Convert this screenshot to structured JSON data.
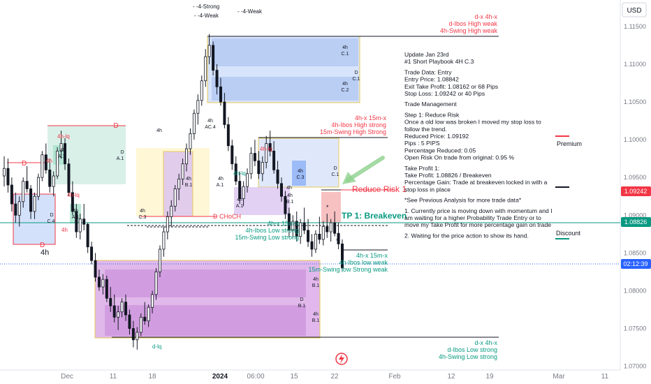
{
  "chart_data": {
    "type": "candlestick",
    "currency": "USD",
    "y_ticks": [
      "1.11500",
      "1.11000",
      "1.10500",
      "1.10000",
      "1.09500",
      "1.09000",
      "1.08500",
      "1.08000",
      "1.07500",
      "1.07000"
    ],
    "x_ticks": [
      "Dec",
      "11",
      "18",
      "2024",
      "06:00",
      "15",
      "22",
      "Feb",
      "12",
      "19",
      "Mar",
      "11"
    ],
    "ylim": [
      1.0695,
      1.1185
    ],
    "price_tags": [
      {
        "value": "1.09242",
        "color": "#f23645"
      },
      {
        "value": "1.08826",
        "color": "#089981"
      },
      {
        "value": "02:12:39",
        "color": "#2962ff"
      }
    ],
    "legend_top": {
      "strong": "4-Strong",
      "weak_a": "4-Weak",
      "weak_b": "4-Weak"
    },
    "top_right_labels": {
      "line1": "d-x      4h-x",
      "line2": "d-Ibos High weak",
      "line3": "4h-Swing High weak"
    },
    "mid_high_labels": {
      "line1": "4h-x      15m-x",
      "line2": "4h-Ibos High strong",
      "line3": "15m-Swing High Strong"
    },
    "mid_low_labels": {
      "line1": "4h-x      15m-x",
      "line2": "4h-Ibos Low strong",
      "line3": "15m-Swing Low strong"
    },
    "right_low_labels": {
      "line1": "4h-x      15m-x",
      "line2": "4h-Ibos low weak",
      "line3": "15m-Swing low Strong weak"
    },
    "bottom_labels": {
      "line1": "d-x      4h-x",
      "line2": "d-Ibos Low strong",
      "line3": "4h-Swing Low strong"
    },
    "zone_labels": {
      "premium": "Premium",
      "discount": "Discount",
      "reduce_risk": "Reduce Risk 1",
      "tp1": "TP 1: Breakeven",
      "choch": "D CHoCH",
      "d": "D",
      "h4": "4h",
      "h4lq": "4h-lq",
      "dlq": "d-lq",
      "c1": "C.1",
      "c2": "C.2",
      "c3": "C.3",
      "c4": "C.4",
      "a1": "A.1",
      "b1": "B.1",
      "ac4": "AC.4",
      "star": "*"
    },
    "notes": [
      "Update Jan 23rd",
      "#1 Short Playbook 4H C.3",
      "",
      "Trade Data: Entry",
      "Entry Price: 1.08842",
      "Exit Take Profit: 1.08162 or 68 Pips",
      "Stop Loss: 1.09242 or 40 Pips",
      "",
      "Trade Management",
      "",
      "Step 1: Reduce Risk",
      "Once a old low was broken I moved my stop loss to",
      "follow the trend.",
      "Reduced Price: 1.09192",
      "Pips : 5 PIPS",
      "Percentage Reduced: 0.05",
      "Open Risk On trade from original: 0.95 %",
      "",
      "Take Profit 1:",
      "Take Profit: 1.08826 / Breakeven",
      "Percentage Gain: Trade at breakeven locked in with a",
      "stop loss in place",
      "",
      "*See Previous Analysis for more trade data*",
      "",
      "1. Currently price is moving down with momentum and I",
      "am waiting for a higher Probability Trade Entry or to",
      "move my Take Profit for more percentage gain on trade",
      "",
      "2. Waiting for the price action to show its hand."
    ],
    "candles": [
      [
        1.0952,
        1.0978,
        1.0938,
        1.0962
      ],
      [
        1.0962,
        1.0975,
        1.093,
        1.094
      ],
      [
        1.094,
        1.095,
        1.0905,
        1.0915
      ],
      [
        1.0915,
        1.093,
        1.089,
        1.09
      ],
      [
        1.09,
        1.0925,
        1.0885,
        1.0918
      ],
      [
        1.0918,
        1.095,
        1.091,
        1.0945
      ],
      [
        1.0945,
        1.0965,
        1.093,
        1.0935
      ],
      [
        1.0935,
        1.094,
        1.0895,
        1.0905
      ],
      [
        1.0905,
        1.093,
        1.0895,
        1.0925
      ],
      [
        1.0925,
        1.0955,
        1.092,
        1.095
      ],
      [
        1.095,
        1.0985,
        1.0945,
        1.098
      ],
      [
        1.098,
        1.0995,
        1.0955,
        1.096
      ],
      [
        1.096,
        1.0975,
        1.093,
        1.0938
      ],
      [
        1.0938,
        1.0958,
        1.0925,
        1.0952
      ],
      [
        1.0952,
        1.099,
        1.0948,
        1.0985
      ],
      [
        1.0985,
        1.1012,
        1.0975,
        1.0995
      ],
      [
        1.0995,
        1.1002,
        1.096,
        1.0968
      ],
      [
        1.0968,
        1.0975,
        1.0925,
        1.093
      ],
      [
        1.093,
        1.0945,
        1.09,
        1.0905
      ],
      [
        1.0905,
        1.0915,
        1.087,
        1.0878
      ],
      [
        1.0878,
        1.0902,
        1.0868,
        1.0895
      ],
      [
        1.0895,
        1.0915,
        1.088,
        1.0888
      ],
      [
        1.0888,
        1.089,
        1.085,
        1.0858
      ],
      [
        1.0858,
        1.0865,
        1.0835,
        1.084
      ],
      [
        1.084,
        1.085,
        1.0812,
        1.0818
      ],
      [
        1.0818,
        1.0828,
        1.08,
        1.0805
      ],
      [
        1.0805,
        1.0822,
        1.0795,
        1.0815
      ],
      [
        1.0815,
        1.082,
        1.0785,
        1.079
      ],
      [
        1.079,
        1.0805,
        1.0772,
        1.078
      ],
      [
        1.078,
        1.0795,
        1.0758,
        1.0765
      ],
      [
        1.0765,
        1.078,
        1.0748,
        1.0772
      ],
      [
        1.0772,
        1.079,
        1.0765,
        1.0785
      ],
      [
        1.0785,
        1.0795,
        1.076,
        1.0768
      ],
      [
        1.0768,
        1.0775,
        1.0742,
        1.075
      ],
      [
        1.075,
        1.076,
        1.0725,
        1.0735
      ],
      [
        1.0735,
        1.0752,
        1.0722,
        1.0745
      ],
      [
        1.0745,
        1.077,
        1.074,
        1.0765
      ],
      [
        1.0765,
        1.0785,
        1.0755,
        1.076
      ],
      [
        1.076,
        1.0782,
        1.0752,
        1.0778
      ],
      [
        1.0778,
        1.08,
        1.077,
        1.0795
      ],
      [
        1.0795,
        1.083,
        1.0788,
        1.0825
      ],
      [
        1.0825,
        1.086,
        1.0818,
        1.0855
      ],
      [
        1.0855,
        1.0885,
        1.0845,
        1.0878
      ],
      [
        1.0878,
        1.0905,
        1.0868,
        1.0898
      ],
      [
        1.0898,
        1.092,
        1.0885,
        1.0912
      ],
      [
        1.0912,
        1.094,
        1.0905,
        1.0935
      ],
      [
        1.0935,
        1.0955,
        1.092,
        1.0948
      ],
      [
        1.0948,
        1.0975,
        1.094,
        1.0968
      ],
      [
        1.0968,
        1.0995,
        1.0958,
        1.0988
      ],
      [
        1.0988,
        1.1015,
        1.098,
        1.1008
      ],
      [
        1.1008,
        1.104,
        1.1,
        1.1035
      ],
      [
        1.1035,
        1.106,
        1.102,
        1.1052
      ],
      [
        1.1052,
        1.1085,
        1.1045,
        1.1078
      ],
      [
        1.1078,
        1.112,
        1.107,
        1.111
      ],
      [
        1.111,
        1.114,
        1.11,
        1.1125
      ],
      [
        1.1125,
        1.113,
        1.1085,
        1.1092
      ],
      [
        1.1092,
        1.11,
        1.106,
        1.107
      ],
      [
        1.107,
        1.1082,
        1.1045,
        1.105
      ],
      [
        1.105,
        1.1062,
        1.1015,
        1.102
      ],
      [
        1.102,
        1.103,
        1.0985,
        1.0992
      ],
      [
        1.0992,
        1.1,
        1.096,
        1.0968
      ],
      [
        1.0968,
        1.0978,
        1.094,
        1.0945
      ],
      [
        1.0945,
        1.0958,
        1.0915,
        1.0922
      ],
      [
        1.0922,
        1.0945,
        1.0912,
        1.0938
      ],
      [
        1.0938,
        1.0962,
        1.093,
        1.0955
      ],
      [
        1.0955,
        1.099,
        1.0948,
        1.0982
      ],
      [
        1.0982,
        1.1,
        1.0965,
        1.0972
      ],
      [
        1.0972,
        1.0985,
        1.0948,
        1.0955
      ],
      [
        1.0955,
        1.0978,
        1.0945,
        1.097
      ],
      [
        1.097,
        1.1005,
        1.0962,
        1.0995
      ],
      [
        1.0995,
        1.1012,
        1.0978,
        1.0985
      ],
      [
        1.0985,
        1.0998,
        1.0955,
        1.096
      ],
      [
        1.096,
        1.0972,
        1.0935,
        1.0942
      ],
      [
        1.0942,
        1.095,
        1.0918,
        1.0925
      ],
      [
        1.0925,
        1.0932,
        1.0895,
        1.0902
      ],
      [
        1.0902,
        1.091,
        1.087,
        1.088
      ],
      [
        1.088,
        1.09,
        1.087,
        1.0892
      ],
      [
        1.0892,
        1.0905,
        1.0865,
        1.0872
      ],
      [
        1.0872,
        1.0895,
        1.0862,
        1.089
      ],
      [
        1.089,
        1.091,
        1.0875,
        1.088
      ],
      [
        1.088,
        1.0895,
        1.0858,
        1.0865
      ],
      [
        1.0865,
        1.0875,
        1.0845,
        1.0855
      ],
      [
        1.0855,
        1.088,
        1.085,
        1.0875
      ],
      [
        1.0875,
        1.0898,
        1.0862,
        1.0868
      ],
      [
        1.0868,
        1.0892,
        1.086,
        1.0885
      ],
      [
        1.0885,
        1.0902,
        1.087,
        1.0878
      ],
      [
        1.0878,
        1.0895,
        1.0865,
        1.089
      ],
      [
        1.089,
        1.0905,
        1.0872,
        1.0876
      ],
      [
        1.0876,
        1.089,
        1.0855,
        1.0862
      ],
      [
        1.0862,
        1.0868,
        1.0825,
        1.083
      ]
    ]
  }
}
